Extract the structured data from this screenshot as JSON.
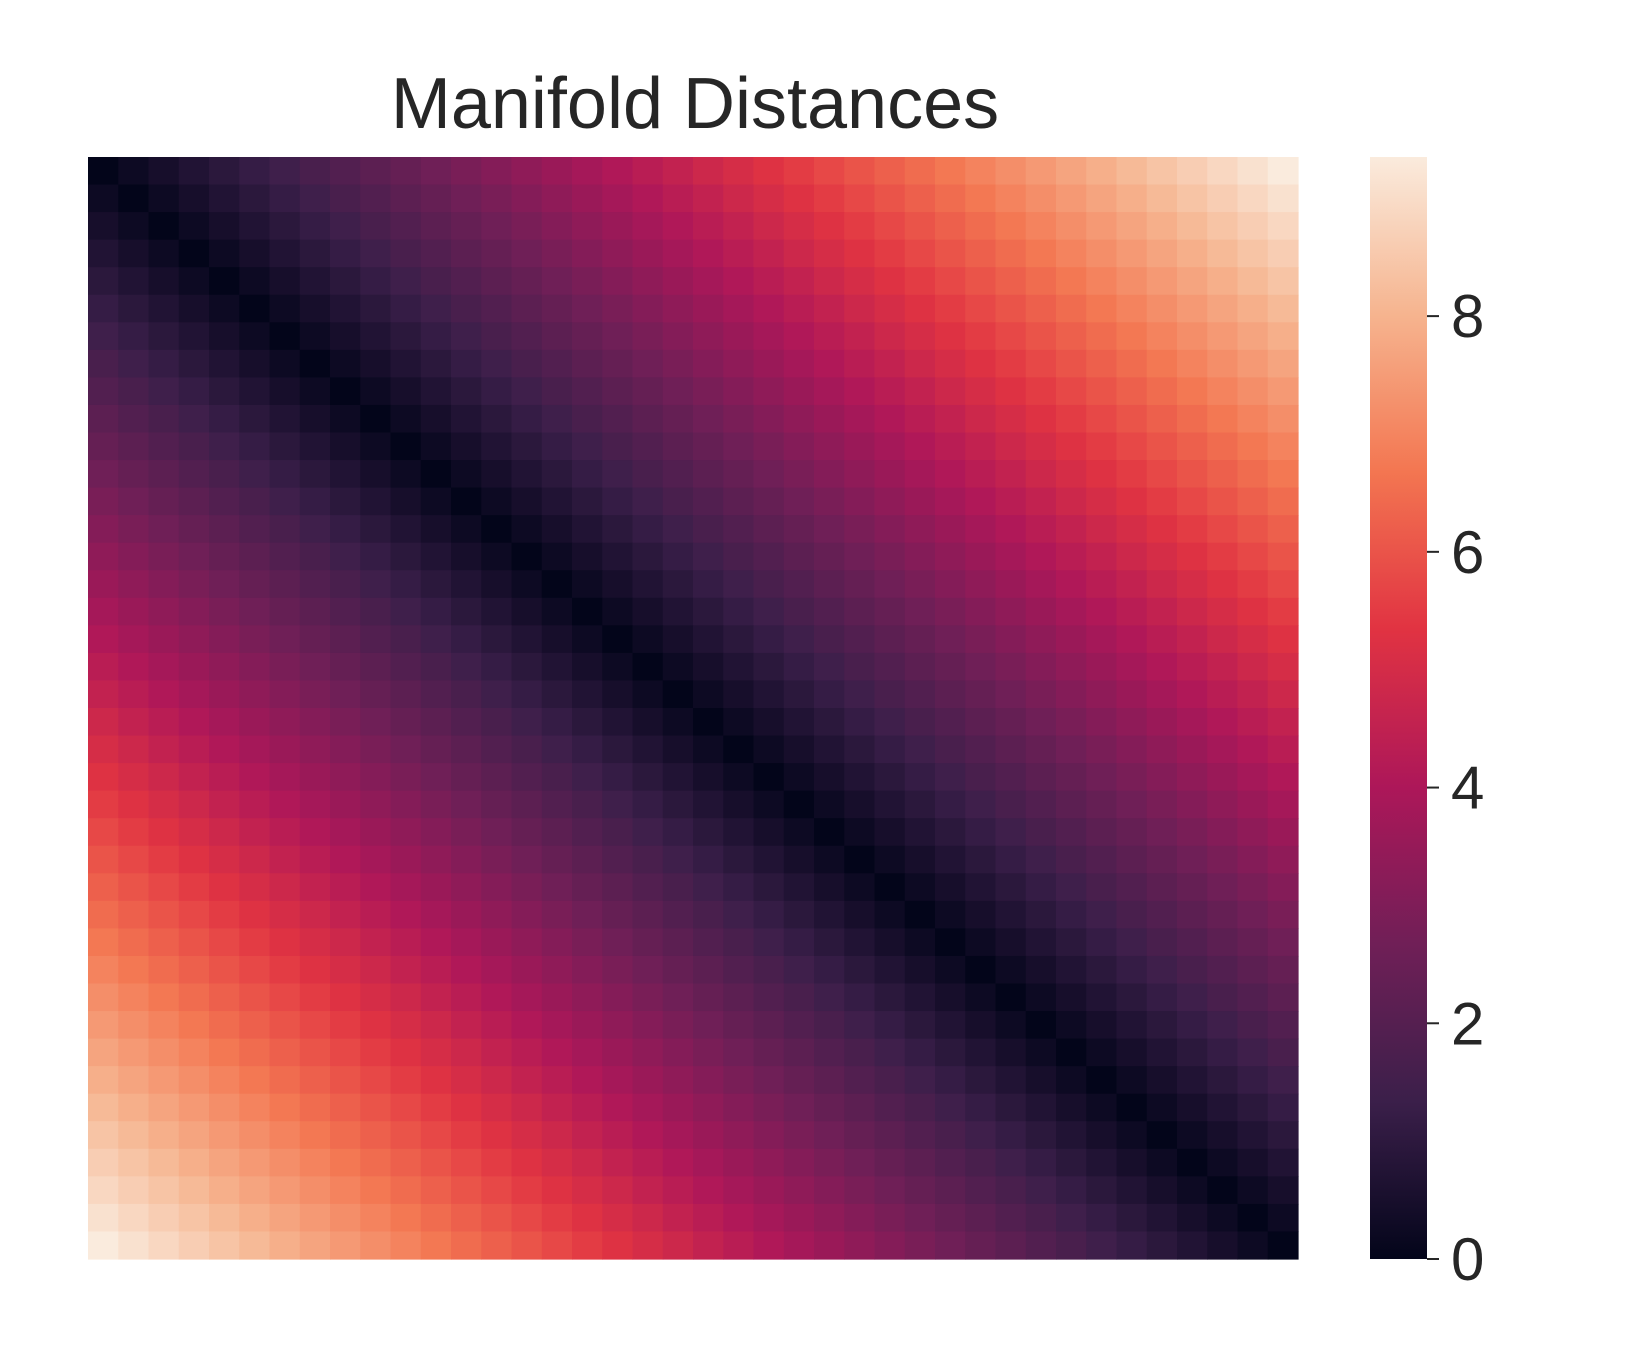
{
  "chart_data": {
    "type": "heatmap",
    "title": "Manifold Distances",
    "xlabel": "",
    "ylabel": "",
    "grid": false,
    "matrix_size": 40,
    "value_range": [
      0,
      9.35
    ],
    "matrix_rule": "symmetric pairwise distance, zero on the diagonal, largest at top-right and bottom-left corners",
    "samples": {
      "diagonal": 0,
      "near_diagonal_offset_5": 1.2,
      "offset_10": 2.4,
      "offset_20": 4.7,
      "offset_30": 7.0,
      "corner": 9.35
    },
    "colormap": {
      "name": "rocket",
      "stops": [
        "#03051a",
        "#3b1f4a",
        "#701f57",
        "#ad1759",
        "#e13342",
        "#f37651",
        "#f6b48f",
        "#faebdd"
      ]
    },
    "colorbar": {
      "ticks": [
        0,
        2,
        4,
        6,
        8
      ],
      "labels": [
        "0",
        "2",
        "4",
        "6",
        "8"
      ],
      "min": 0,
      "max": 9.35
    }
  }
}
